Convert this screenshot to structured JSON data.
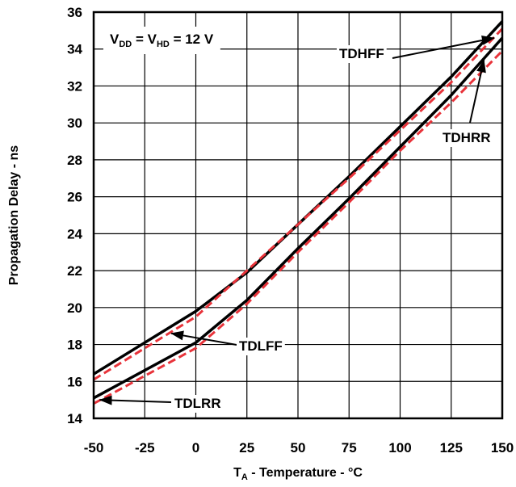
{
  "chart_data": {
    "type": "line",
    "title": "",
    "xlabel": {
      "main": "T",
      "sub": "A",
      "rest": " - Temperature - °C"
    },
    "ylabel": "Propagation Delay - ns",
    "xlim": [
      -50,
      150
    ],
    "ylim": [
      14,
      36
    ],
    "x_ticks": [
      -50,
      -25,
      0,
      25,
      50,
      75,
      100,
      125,
      150
    ],
    "y_ticks": [
      14,
      16,
      18,
      20,
      22,
      24,
      26,
      28,
      30,
      32,
      34,
      36
    ],
    "grid": true,
    "condition": {
      "v1": "V",
      "s1": "DD",
      "eq1": " = V",
      "s2": "HD",
      "eq2": " = 12 V"
    },
    "series": [
      {
        "name": "TDHFF",
        "style": "solid",
        "color": "#000000",
        "x": [
          -50,
          0,
          25,
          50,
          75,
          100,
          125,
          150
        ],
        "y": [
          16.4,
          19.8,
          21.9,
          24.5,
          27.1,
          29.8,
          32.5,
          35.5
        ]
      },
      {
        "name": "",
        "style": "dashed",
        "color": "#e8333a",
        "x": [
          -50,
          0,
          25,
          50,
          75,
          100,
          125,
          150
        ],
        "y": [
          16.1,
          19.5,
          22.0,
          24.5,
          27.0,
          29.6,
          32.2,
          35.1
        ]
      },
      {
        "name": "TDHRR",
        "style": "solid",
        "color": "#000000",
        "x": [
          -50,
          0,
          25,
          50,
          75,
          100,
          125,
          150
        ],
        "y": [
          15.1,
          18.1,
          20.4,
          23.2,
          25.9,
          28.7,
          31.5,
          34.6
        ]
      },
      {
        "name": "",
        "style": "dashed",
        "color": "#e8333a",
        "x": [
          -50,
          0,
          25,
          50,
          75,
          100,
          125,
          150
        ],
        "y": [
          14.8,
          17.8,
          20.2,
          23.0,
          25.7,
          28.5,
          31.1,
          33.9
        ]
      }
    ],
    "annotations": [
      {
        "text": "TDHFF",
        "arrow_to": [
          146,
          34.6
        ]
      },
      {
        "text": "TDHRR",
        "arrow_to": [
          141,
          33.4
        ]
      },
      {
        "text": "TDLFF",
        "arrow_to": [
          -12,
          18.6
        ]
      },
      {
        "text": "TDLRR",
        "arrow_to": [
          -47,
          15.0
        ]
      }
    ]
  }
}
